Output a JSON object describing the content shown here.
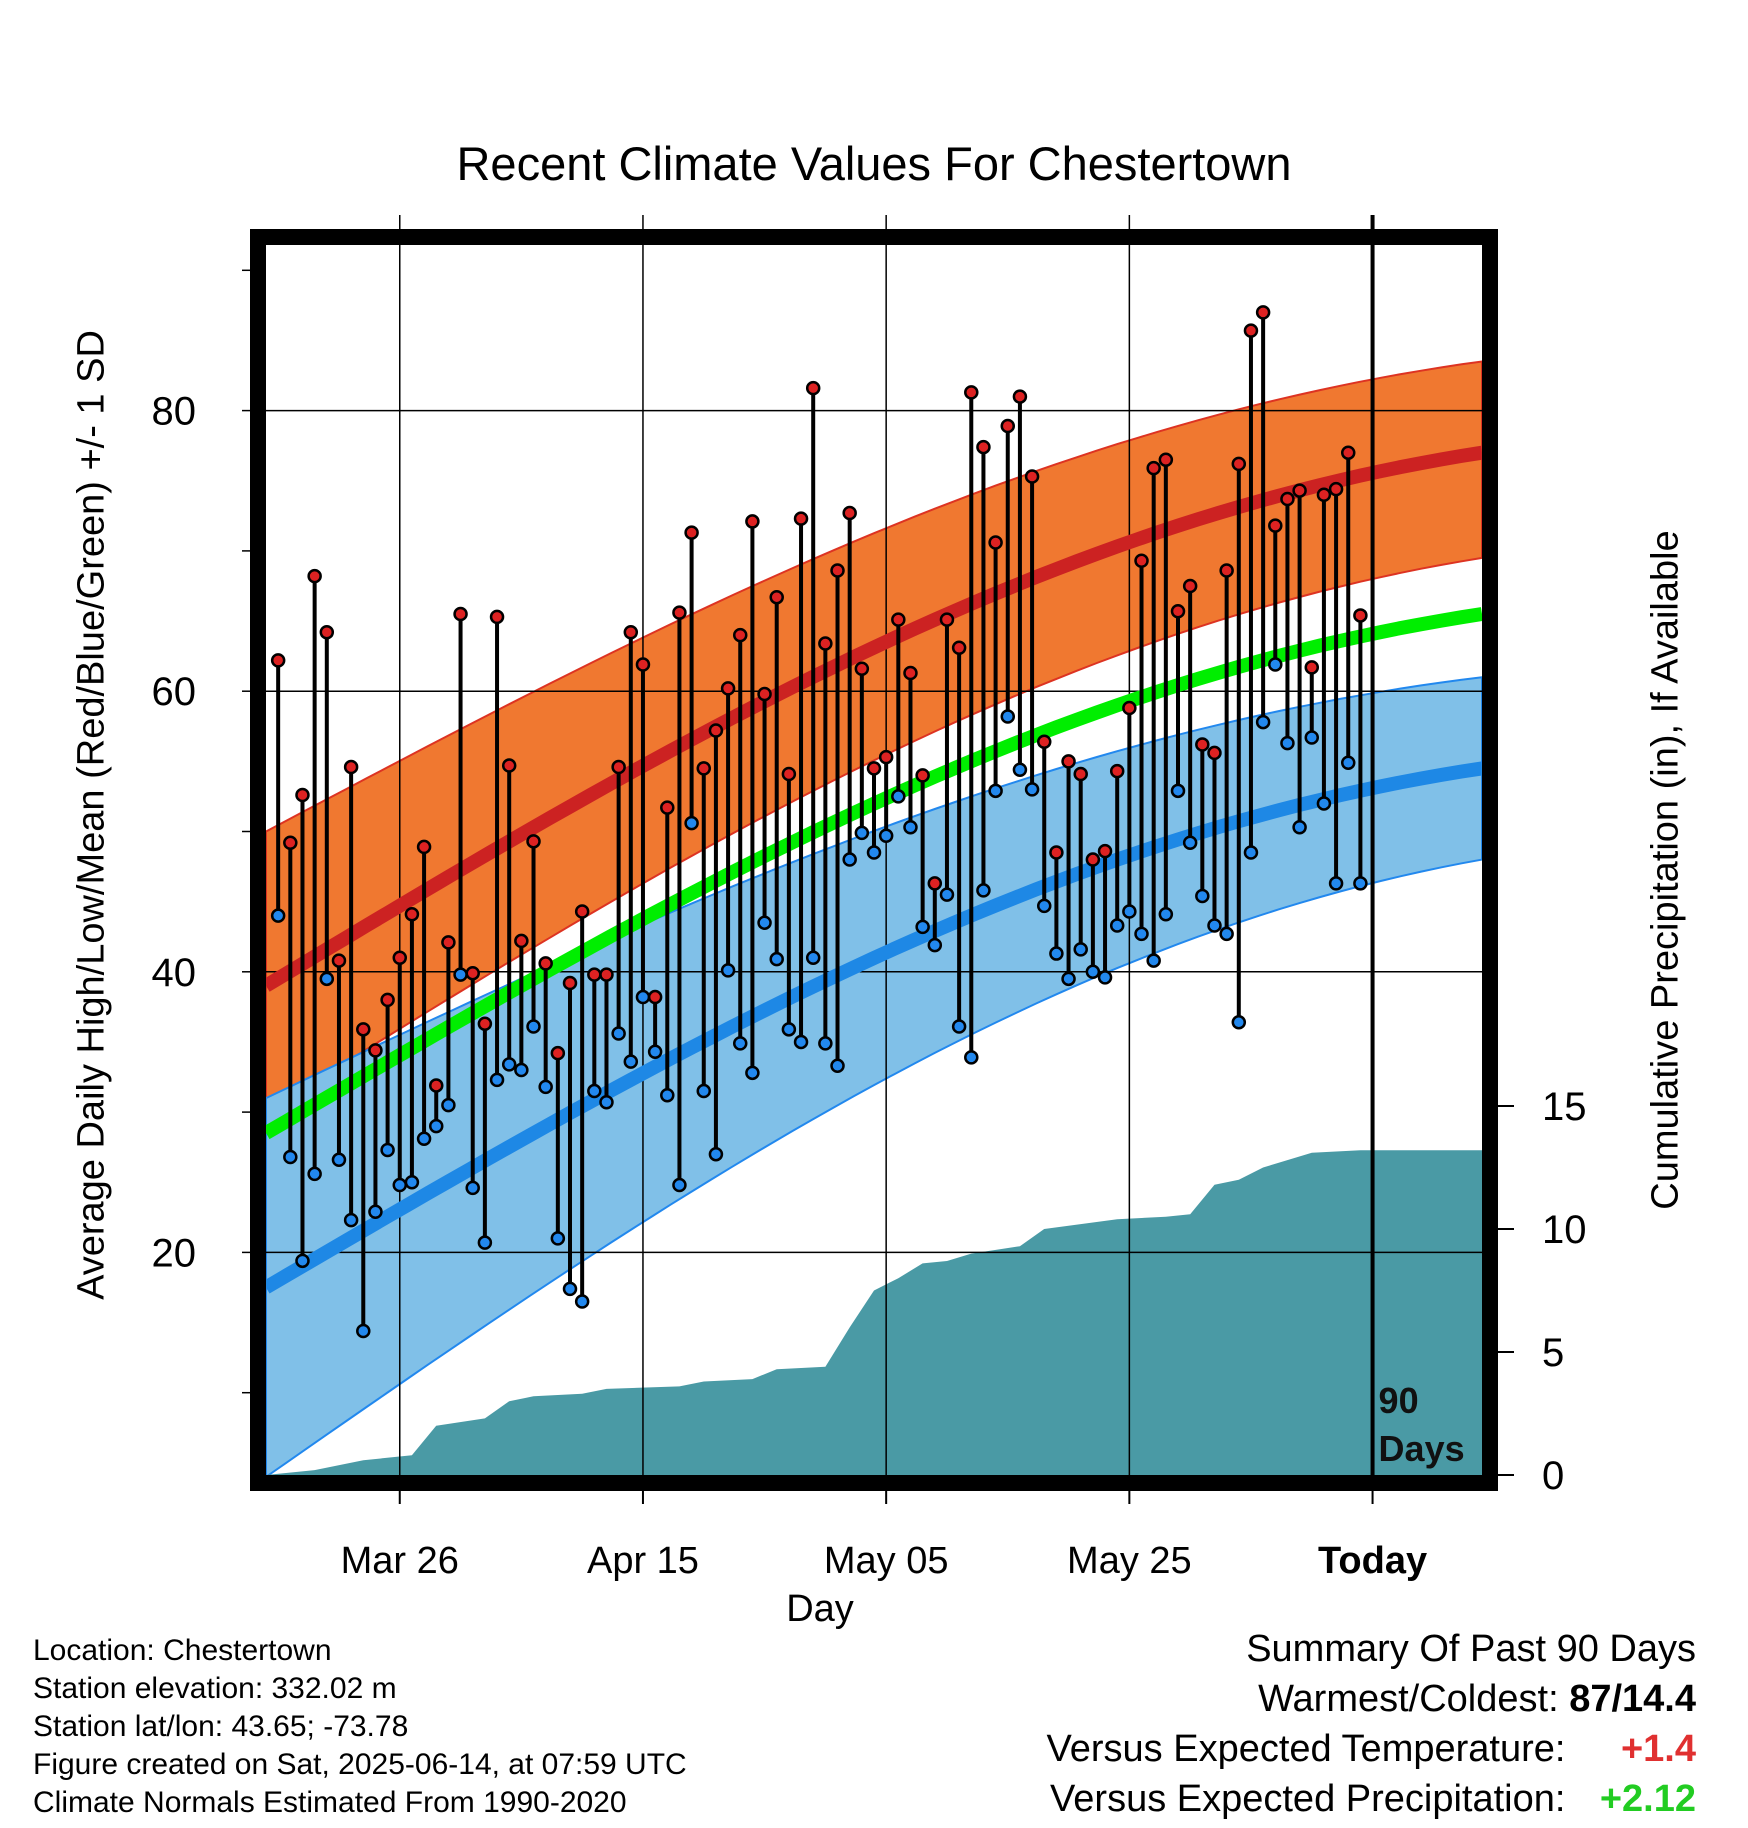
{
  "chart_data": {
    "type": "line",
    "title": "Recent Climate Values For Chestertown",
    "xlabel": "Day",
    "ylabel_left": "Average Daily High/Low/Mean (Red/Blue/Green) +/- 1 SD",
    "ylabel_right": "Cumulative Precipitation (in), If Available",
    "days_marker": "90\nDays",
    "x_tick_labels": [
      "Mar 26",
      "Apr 15",
      "May 05",
      "May 25",
      "Today"
    ],
    "y_left_ticks": [
      "20",
      "40",
      "60",
      "80"
    ],
    "y_right_ticks": [
      "0",
      "5",
      "10",
      "15"
    ],
    "y_left_range": [
      5,
      92
    ],
    "y_right_range": [
      0,
      30
    ],
    "x_range": [
      "Mar 15",
      "Jun 24"
    ],
    "grid": true,
    "normal_high": {
      "start": 39,
      "end": 77
    },
    "normal_high_sd": {
      "upper_start": 50,
      "upper_end": 83.5,
      "lower_start": 30,
      "lower_end": 69.5
    },
    "normal_low": {
      "start": 17.5,
      "end": 54.5
    },
    "normal_low_sd": {
      "upper_start": 31,
      "upper_end": 61,
      "lower_start": 4,
      "lower_end": 48
    },
    "normal_mean": {
      "start": 28.5,
      "end": 65.5
    },
    "daily_highs": [
      62.2,
      49.2,
      52.6,
      68.2,
      64.2,
      40.8,
      54.6,
      35.9,
      34.4,
      38.0,
      41.0,
      44.1,
      48.9,
      31.9,
      42.1,
      65.5,
      39.9,
      36.3,
      65.3,
      54.7,
      42.2,
      49.3,
      40.6,
      34.2,
      39.2,
      44.3,
      39.8,
      39.8,
      54.6,
      64.2,
      61.9,
      38.2,
      51.7,
      65.6,
      71.3,
      54.5,
      57.2,
      60.2,
      64.0,
      72.1,
      59.8,
      66.7,
      54.1,
      72.3,
      81.6,
      63.4,
      68.6,
      72.7,
      61.6,
      54.5,
      55.3,
      65.1,
      61.3,
      54.0,
      46.3,
      65.1,
      63.1,
      81.3,
      77.4,
      70.6,
      78.9,
      81.0,
      75.3,
      56.4,
      48.5,
      55.0,
      54.1,
      48.0,
      48.6,
      54.3,
      58.8,
      69.3,
      75.9,
      76.5,
      65.7,
      67.5,
      56.2,
      55.6,
      68.6,
      76.2,
      85.7,
      87.0,
      71.8,
      73.7,
      74.3,
      61.7,
      74.0,
      74.4,
      77.0,
      65.4
    ],
    "daily_lows": [
      44.0,
      26.8,
      19.4,
      25.6,
      39.5,
      26.6,
      22.3,
      14.4,
      22.9,
      27.3,
      24.8,
      25.0,
      28.1,
      29.0,
      30.5,
      39.8,
      24.6,
      20.7,
      32.3,
      33.4,
      33.0,
      36.1,
      31.8,
      21.0,
      17.4,
      16.5,
      31.5,
      30.7,
      35.6,
      33.6,
      38.2,
      34.3,
      31.2,
      24.8,
      50.6,
      31.5,
      27.0,
      40.1,
      34.9,
      32.8,
      43.5,
      40.9,
      35.9,
      35.0,
      41.0,
      34.9,
      33.3,
      48.0,
      49.9,
      48.5,
      49.7,
      52.5,
      50.3,
      43.2,
      41.9,
      45.5,
      36.1,
      33.9,
      45.8,
      52.9,
      58.2,
      54.4,
      53.0,
      44.7,
      41.3,
      39.5,
      41.6,
      40.0,
      39.6,
      43.3,
      44.3,
      42.7,
      40.8,
      44.1,
      52.9,
      49.2,
      45.4,
      43.3,
      42.7,
      36.4,
      48.5,
      57.8,
      61.9,
      56.3,
      50.3,
      56.7,
      52.0,
      46.3,
      54.9,
      46.3
    ],
    "cumulative_precip": [
      [
        0,
        0
      ],
      [
        4,
        0.2
      ],
      [
        8,
        0.6
      ],
      [
        12,
        0.8
      ],
      [
        14,
        2.0
      ],
      [
        18,
        2.3
      ],
      [
        20,
        3.0
      ],
      [
        22,
        3.2
      ],
      [
        26,
        3.3
      ],
      [
        28,
        3.5
      ],
      [
        34,
        3.6
      ],
      [
        36,
        3.8
      ],
      [
        40,
        3.9
      ],
      [
        42,
        4.3
      ],
      [
        46,
        4.4
      ],
      [
        48,
        6.0
      ],
      [
        50,
        7.5
      ],
      [
        52,
        8.0
      ],
      [
        54,
        8.6
      ],
      [
        56,
        8.7
      ],
      [
        58,
        9.0
      ],
      [
        62,
        9.3
      ],
      [
        64,
        10.0
      ],
      [
        67,
        10.2
      ],
      [
        70,
        10.4
      ],
      [
        74,
        10.5
      ],
      [
        76,
        10.6
      ],
      [
        78,
        11.8
      ],
      [
        80,
        12.0
      ],
      [
        82,
        12.5
      ],
      [
        84,
        12.8
      ],
      [
        86,
        13.1
      ],
      [
        90,
        13.2
      ],
      [
        100,
        13.2
      ]
    ],
    "series": [
      {
        "name": "High",
        "color": "#cc2222"
      },
      {
        "name": "Low",
        "color": "#1e88e5"
      },
      {
        "name": "Mean",
        "color": "#00ee00"
      },
      {
        "name": "Precipitation",
        "color": "#4a9aa5"
      }
    ]
  },
  "footer": {
    "location": "Location: Chestertown",
    "elevation": "Station elevation: 332.02 m",
    "latlon": "Station lat/lon: 43.65; -73.78",
    "created": "Figure created on Sat, 2025-06-14, at 07:59 UTC",
    "normals": "Climate Normals Estimated From 1990-2020"
  },
  "summary": {
    "heading": "Summary Of Past 90 Days",
    "warmest_label": "Warmest/Coldest:",
    "warmest_value": "87/14.4",
    "temp_label": "Versus Expected Temperature:",
    "temp_value": "+1.4",
    "temp_color": "#e03030",
    "precip_label": "Versus Expected Precipitation:",
    "precip_value": "+2.12",
    "precip_color": "#22cc22"
  }
}
